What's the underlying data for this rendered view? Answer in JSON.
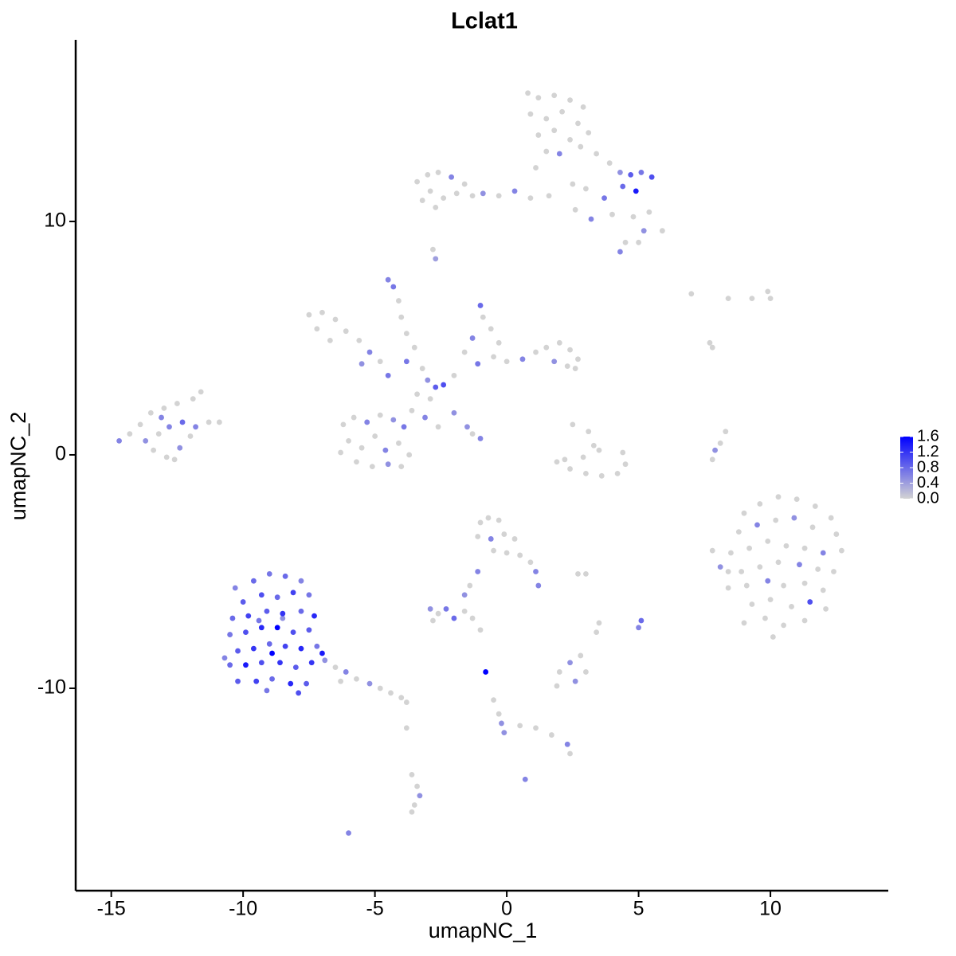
{
  "chart_data": {
    "type": "scatter",
    "title": "Lclat1",
    "x_label": "umapNC_1",
    "y_label": "umapNC_2",
    "xlim": [
      -16.35,
      14.47
    ],
    "ylim": [
      -18.67,
      17.78
    ],
    "xticks": [
      -15,
      -10,
      -5,
      0,
      5,
      10
    ],
    "yticks": [
      -10,
      0,
      10
    ],
    "colorlim": [
      0,
      1.6
    ],
    "colorticks": [
      {
        "value": 0,
        "label": "0.0"
      },
      0.4,
      0.8,
      1.2,
      1.6
    ],
    "low_color": "#d3d3d3",
    "high_color": "#0000ff",
    "grid": false,
    "x": [
      0.8,
      1.2,
      1.8,
      2.4,
      2.9,
      0.9,
      1.5,
      2.1,
      2.7,
      3.1,
      1.2,
      1.8,
      2.4,
      1.5,
      2.0,
      2.8,
      3.4,
      1.1,
      3.9,
      4.3,
      4.7,
      5.1,
      5.5,
      4.9,
      4.4,
      3.7,
      4.0,
      3.2,
      2.6,
      4.8,
      5.4,
      5.9,
      5.2,
      4.5,
      4.3,
      5.0,
      2.5,
      1.6,
      3.0,
      -3.4,
      -3.0,
      -2.6,
      -2.1,
      -1.6,
      -2.9,
      -2.4,
      -1.9,
      -3.2,
      -2.7,
      -1.3,
      -0.9,
      -0.3,
      0.3,
      0.9,
      -2.8,
      -2.7,
      -7.5,
      -7.0,
      -6.5,
      -7.2,
      -6.1,
      -6.7,
      -5.6,
      -5.2,
      -4.8,
      -5.5,
      -4.5,
      -4.5,
      -4.3,
      -4.1,
      -4.0,
      -3.8,
      -3.5,
      -3.8,
      -3.2,
      -3.0,
      -2.7,
      -2.4,
      -2.0,
      -3.4,
      -2.9,
      -3.6,
      -3.1,
      -2.6,
      -1.0,
      -0.9,
      -0.6,
      -1.3,
      -0.3,
      -1.6,
      -1.1,
      -0.5,
      0.0,
      0.6,
      1.1,
      1.5,
      2.0,
      2.4,
      2.7,
      2.3,
      1.8,
      2.6,
      -2.0,
      -1.5,
      -1.0,
      -1.3,
      -6.2,
      -5.8,
      -5.3,
      -4.8,
      -4.3,
      -3.9,
      -6.0,
      -5.5,
      -5.0,
      -4.6,
      -4.1,
      -3.7,
      -5.7,
      -5.1,
      -4.5,
      -4.0,
      -6.3,
      -14.7,
      -14.3,
      -13.9,
      -13.5,
      -13.0,
      -12.5,
      -11.9,
      -11.6,
      -13.7,
      -13.2,
      -12.8,
      -12.3,
      -11.8,
      -11.3,
      -10.9,
      -13.4,
      -12.9,
      -12.4,
      -12.0,
      -13.1,
      -12.6,
      2.5,
      3.1,
      3.3,
      2.9,
      2.2,
      1.9,
      2.4,
      3.0,
      3.6,
      4.2,
      4.5,
      4.4,
      3.5,
      8.3,
      8.1,
      7.9,
      7.8,
      9.0,
      9.6,
      10.3,
      11.0,
      11.7,
      12.3,
      8.8,
      9.5,
      10.2,
      10.9,
      11.6,
      12.5,
      8.5,
      9.2,
      9.9,
      10.6,
      11.3,
      12.0,
      12.7,
      8.9,
      9.6,
      10.3,
      11.1,
      11.8,
      12.4,
      8.4,
      9.1,
      9.9,
      10.5,
      11.3,
      12.0,
      9.3,
      10.0,
      10.8,
      11.5,
      12.1,
      9.0,
      9.8,
      10.5,
      11.3,
      10.1,
      8.4,
      7.8,
      8.1,
      -10.3,
      -9.6,
      -9.0,
      -8.4,
      -7.8,
      -10.0,
      -9.3,
      -8.7,
      -8.1,
      -7.5,
      -10.4,
      -9.8,
      -9.1,
      -8.5,
      -7.8,
      -7.3,
      -10.5,
      -9.9,
      -9.3,
      -8.7,
      -8.1,
      -7.5,
      -10.2,
      -9.6,
      -9.0,
      -8.4,
      -7.8,
      -7.2,
      -10.5,
      -9.9,
      -9.3,
      -8.6,
      -8.0,
      -7.4,
      -10.2,
      -9.5,
      -8.9,
      -8.2,
      -7.6,
      -9.1,
      -7.9,
      -8.9,
      -7.0,
      -10.7,
      -8.5,
      -9.4,
      -6.9,
      -6.5,
      -6.1,
      -5.7,
      -5.2,
      -4.8,
      -4.4,
      -4.0,
      -3.8,
      -6.3,
      -1.0,
      -0.7,
      -0.3,
      -1.1,
      -0.6,
      -0.1,
      0.3,
      -0.5,
      0.0,
      0.5,
      0.9,
      1.1,
      1.2,
      -1.1,
      -1.4,
      -1.6,
      -2.9,
      -2.6,
      -2.3,
      -2.0,
      -2.8,
      -1.6,
      2.0,
      2.4,
      2.8,
      3.0,
      2.6,
      1.9,
      3.4,
      3.5,
      -0.8,
      -0.5,
      -0.3,
      -0.2,
      -0.1,
      0.5,
      1.1,
      1.7,
      2.3,
      2.4,
      0.7,
      -3.6,
      -3.4,
      -3.3,
      -3.5,
      -3.6,
      -6.0,
      -3.8,
      5.1,
      5.0,
      2.7,
      3.0,
      7.0,
      8.4,
      9.3,
      9.9,
      10.0,
      7.7,
      7.8,
      -1.3,
      -1.0
    ],
    "y": [
      15.5,
      15.3,
      15.4,
      15.2,
      14.9,
      14.6,
      14.4,
      14.7,
      14.2,
      13.8,
      13.7,
      13.9,
      13.5,
      13.0,
      12.9,
      13.2,
      12.9,
      12.3,
      12.5,
      12.1,
      12.0,
      12.1,
      11.9,
      11.3,
      11.5,
      11.0,
      10.3,
      10.1,
      10.5,
      10.2,
      10.4,
      9.6,
      9.6,
      9.1,
      8.7,
      9.1,
      11.6,
      11.1,
      11.4,
      11.7,
      12.0,
      12.1,
      11.9,
      11.6,
      11.3,
      11.0,
      11.2,
      10.9,
      10.6,
      11.1,
      11.2,
      11.1,
      11.3,
      11.0,
      8.8,
      8.4,
      6.0,
      6.1,
      5.8,
      5.4,
      5.3,
      4.9,
      4.9,
      4.4,
      4.0,
      3.9,
      3.4,
      7.5,
      7.2,
      6.6,
      5.9,
      5.2,
      4.6,
      4.0,
      3.7,
      3.2,
      2.9,
      3.0,
      3.4,
      2.6,
      2.4,
      1.9,
      1.6,
      1.2,
      6.4,
      5.9,
      5.4,
      5.0,
      4.8,
      4.4,
      3.9,
      4.2,
      4.0,
      4.1,
      4.4,
      4.6,
      4.8,
      4.5,
      4.1,
      3.8,
      4.0,
      3.7,
      1.8,
      1.2,
      0.7,
      0.9,
      1.3,
      1.6,
      1.4,
      1.7,
      1.5,
      1.2,
      0.6,
      0.3,
      0.8,
      0.2,
      0.5,
      0.0,
      -0.3,
      -0.5,
      -0.4,
      -0.5,
      0.1,
      0.6,
      0.9,
      1.3,
      1.8,
      2.0,
      2.2,
      2.4,
      2.7,
      0.6,
      0.9,
      1.2,
      1.4,
      1.2,
      1.4,
      1.4,
      0.2,
      -0.1,
      0.3,
      0.8,
      1.6,
      -0.2,
      1.3,
      1.0,
      0.4,
      -0.1,
      -0.2,
      -0.3,
      -0.6,
      -0.8,
      -0.9,
      -0.8,
      -0.4,
      0.1,
      0.2,
      1.0,
      0.5,
      0.2,
      -0.2,
      -2.5,
      -2.1,
      -1.8,
      -1.9,
      -2.2,
      -2.7,
      -3.3,
      -3.0,
      -2.8,
      -2.7,
      -3.1,
      -3.4,
      -4.2,
      -4.0,
      -3.7,
      -3.9,
      -4.0,
      -4.2,
      -4.1,
      -5.0,
      -4.8,
      -4.6,
      -4.7,
      -4.9,
      -5.0,
      -5.7,
      -5.6,
      -5.4,
      -5.6,
      -5.5,
      -5.8,
      -6.4,
      -6.2,
      -6.5,
      -6.3,
      -6.6,
      -7.2,
      -7.0,
      -7.3,
      -7.1,
      -7.8,
      -5.0,
      -4.1,
      -4.8,
      -5.7,
      -5.4,
      -5.1,
      -5.2,
      -5.4,
      -6.3,
      -6.0,
      -6.1,
      -5.9,
      -6.0,
      -7.0,
      -6.9,
      -6.7,
      -6.8,
      -6.7,
      -6.9,
      -7.7,
      -7.6,
      -7.4,
      -7.4,
      -7.6,
      -7.5,
      -8.4,
      -8.3,
      -8.1,
      -8.2,
      -8.3,
      -8.2,
      -9.0,
      -9.0,
      -8.9,
      -8.9,
      -9.1,
      -8.9,
      -9.7,
      -9.7,
      -9.6,
      -9.8,
      -9.8,
      -10.1,
      -10.2,
      -8.5,
      -8.5,
      -8.7,
      -7.0,
      -7.1,
      -8.8,
      -9.1,
      -9.3,
      -9.6,
      -9.8,
      -10.0,
      -10.2,
      -10.4,
      -10.6,
      -9.7,
      -2.9,
      -2.7,
      -2.8,
      -3.5,
      -3.6,
      -3.4,
      -3.6,
      -4.1,
      -4.2,
      -4.3,
      -4.6,
      -5.0,
      -5.6,
      -5.0,
      -5.6,
      -6.0,
      -6.6,
      -6.8,
      -6.6,
      -7.0,
      -7.1,
      -6.7,
      -9.3,
      -8.9,
      -8.6,
      -9.3,
      -9.7,
      -9.9,
      -7.6,
      -7.2,
      -9.3,
      -10.5,
      -11.1,
      -11.5,
      -11.9,
      -11.6,
      -11.7,
      -12.0,
      -12.4,
      -12.8,
      -13.9,
      -13.7,
      -14.2,
      -14.6,
      -15.0,
      -15.3,
      -16.2,
      -11.7,
      -7.1,
      -7.4,
      -5.1,
      -5.1,
      6.9,
      6.7,
      6.7,
      7.0,
      6.7,
      4.8,
      4.6,
      -7.0,
      -7.5
    ],
    "values": [
      0,
      0,
      0,
      0,
      0,
      0,
      0,
      0,
      0,
      0,
      0,
      0,
      0,
      0,
      0.6,
      0,
      0,
      0,
      0,
      0.5,
      0.9,
      0.7,
      1.0,
      1.4,
      0.8,
      0.7,
      0,
      0.6,
      0,
      0,
      0,
      0,
      0.5,
      0,
      0.6,
      0,
      0,
      0,
      0,
      0,
      0,
      0,
      0.6,
      0,
      0,
      0,
      0,
      0,
      0,
      0,
      0.5,
      0,
      0.6,
      0,
      0,
      0.4,
      0,
      0,
      0,
      0,
      0,
      0,
      0,
      0.6,
      0,
      0.5,
      0.7,
      0.6,
      0.7,
      0,
      0,
      0,
      0,
      0.7,
      0,
      0.5,
      0.9,
      1.0,
      0,
      0,
      0,
      0,
      0.6,
      0,
      0.8,
      0,
      0,
      0.6,
      0,
      0,
      0.7,
      0,
      0,
      0.6,
      0,
      0,
      0,
      0,
      0,
      0,
      0.5,
      0,
      0.5,
      0.5,
      0.6,
      0,
      0,
      0,
      0.6,
      0,
      0.5,
      0.7,
      0,
      0,
      0,
      0.6,
      0,
      0,
      0,
      0,
      0.5,
      0,
      0,
      0.6,
      0,
      0,
      0,
      0,
      0,
      0,
      0,
      0.5,
      0,
      0.6,
      0.8,
      0.6,
      0,
      0,
      0,
      0,
      0.5,
      0,
      0.6,
      0,
      0,
      0,
      0,
      0,
      0,
      0,
      0,
      0,
      0,
      0,
      0,
      0,
      0,
      0,
      0,
      0.5,
      0,
      0,
      0,
      0,
      0,
      0,
      0,
      0,
      0.6,
      0,
      0.5,
      0,
      0,
      0,
      0,
      0,
      0,
      0,
      0.6,
      0,
      0,
      0,
      0,
      0.6,
      0,
      0,
      0,
      0,
      0.6,
      0,
      0,
      0,
      0,
      0,
      0,
      1.0,
      0,
      0,
      0,
      0,
      0,
      0,
      0,
      0,
      0.5,
      0.6,
      0.8,
      0.7,
      0.8,
      0.6,
      0.9,
      1.0,
      0.8,
      1.1,
      0.7,
      0.8,
      1.1,
      0.9,
      1.2,
      0.8,
      1.3,
      0.7,
      1.0,
      1.3,
      1.6,
      1.0,
      0.9,
      0.9,
      1.2,
      0.8,
      1.1,
      1.3,
      0.7,
      0.8,
      1.4,
      1.0,
      1.2,
      0.9,
      1.2,
      0.9,
      1.1,
      0.8,
      1.3,
      0.9,
      0.7,
      1.0,
      1.6,
      1.4,
      0.6,
      0.5,
      0.7,
      0.5,
      0,
      0.6,
      0,
      0.5,
      0,
      0,
      0,
      0,
      0,
      0,
      0,
      0,
      0,
      0.6,
      0,
      0,
      0,
      0,
      0,
      0,
      0.6,
      0.6,
      0.6,
      0,
      0.5,
      0.5,
      0,
      0.7,
      0.8,
      0,
      0,
      0,
      0.5,
      0,
      0,
      0.5,
      0,
      0,
      0,
      1.6,
      0,
      0,
      0.5,
      0.5,
      0,
      0,
      0,
      0.6,
      0,
      0.6,
      0,
      0,
      0.5,
      0,
      0,
      0.6,
      0,
      0.8,
      0.6,
      0,
      0,
      0,
      0,
      0,
      0,
      0,
      0,
      0,
      0,
      0
    ]
  }
}
